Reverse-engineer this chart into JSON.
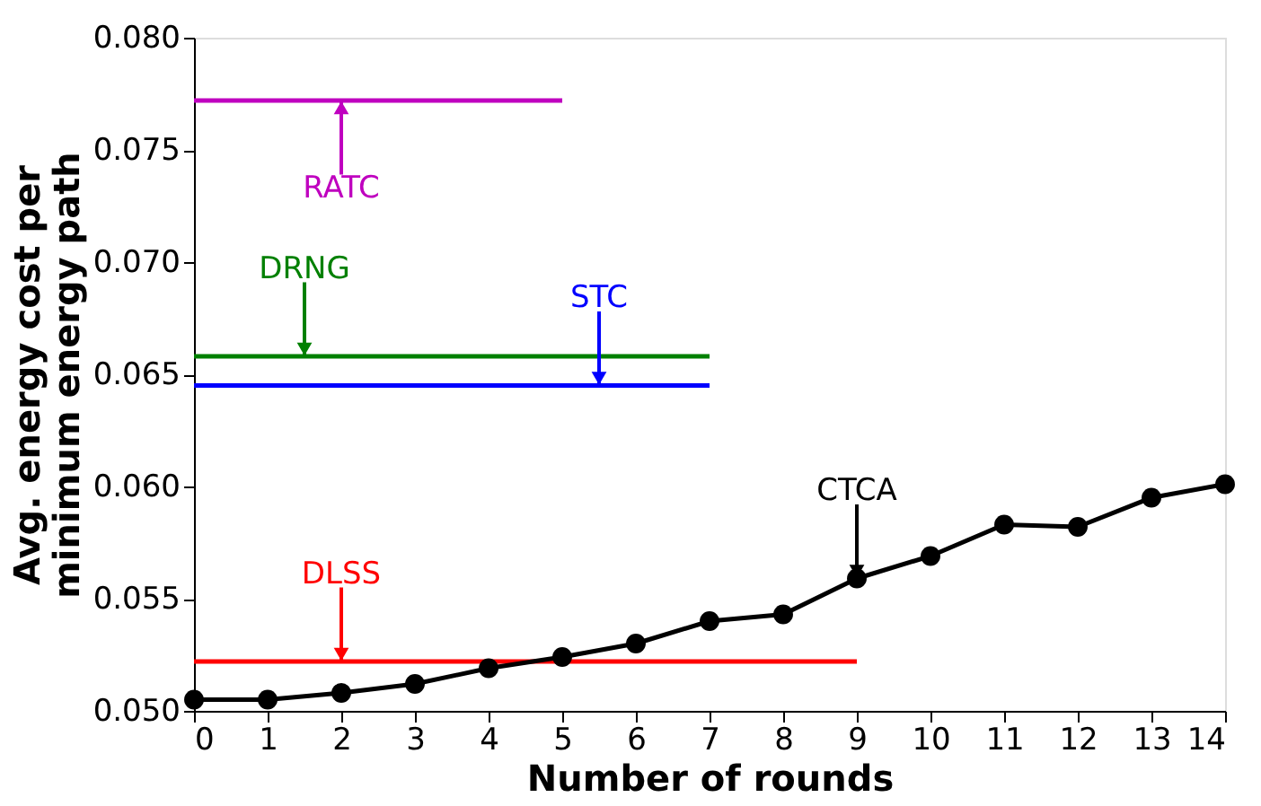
{
  "chart_data": {
    "type": "line",
    "xlabel": "Number of rounds",
    "ylabel": "Avg. energy cost per\nminimum energy path",
    "xlim": [
      0,
      14
    ],
    "xticks": [
      0,
      1,
      2,
      3,
      4,
      5,
      6,
      7,
      8,
      9,
      10,
      11,
      12,
      13,
      14
    ],
    "ylim": [
      0.05,
      0.08
    ],
    "yticks": [
      {
        "value": 0.05,
        "label": "0.050"
      },
      {
        "value": 0.055,
        "label": "0.055"
      },
      {
        "value": 0.06,
        "label": "0.060"
      },
      {
        "value": 0.065,
        "label": "0.065"
      },
      {
        "value": 0.07,
        "label": "0.070"
      },
      {
        "value": 0.075,
        "label": "0.075"
      },
      {
        "value": 0.08,
        "label": "0.080"
      }
    ],
    "grid": false,
    "line_style": "solid",
    "series": [
      {
        "color": "#bf00bf",
        "x": [
          0,
          5
        ],
        "values": [
          0.0772,
          0.0772
        ],
        "marker": "none"
      },
      {
        "color": "#008000",
        "x": [
          0,
          7
        ],
        "values": [
          0.0658,
          0.0658
        ],
        "marker": "none"
      },
      {
        "color": "#0000ff",
        "x": [
          0,
          7
        ],
        "values": [
          0.0645,
          0.0645
        ],
        "marker": "none"
      },
      {
        "color": "#ff0000",
        "x": [
          0,
          9
        ],
        "values": [
          0.0522,
          0.0522
        ],
        "marker": "none"
      },
      {
        "color": "#000000",
        "x": [
          0,
          1,
          2,
          3,
          4,
          5,
          6,
          7,
          8,
          9,
          10,
          11,
          12,
          13,
          14
        ],
        "values": [
          0.0505,
          0.0505,
          0.0508,
          0.0512,
          0.0519,
          0.0524,
          0.053,
          0.054,
          0.0543,
          0.0559,
          0.0569,
          0.0583,
          0.0582,
          0.0595,
          0.0601
        ],
        "marker": "circle"
      }
    ],
    "annotations": [
      {
        "text": "RATC",
        "x": 2,
        "y": 0.0772
      },
      {
        "text": "DRNG",
        "x": 1.5,
        "y": 0.0658
      },
      {
        "text": "STC",
        "x": 5.5,
        "y": 0.0645
      },
      {
        "text": "DLSS",
        "x": 2,
        "y": 0.0522
      },
      {
        "text": "CTCA",
        "x": 9,
        "y": 0.0559
      }
    ]
  }
}
